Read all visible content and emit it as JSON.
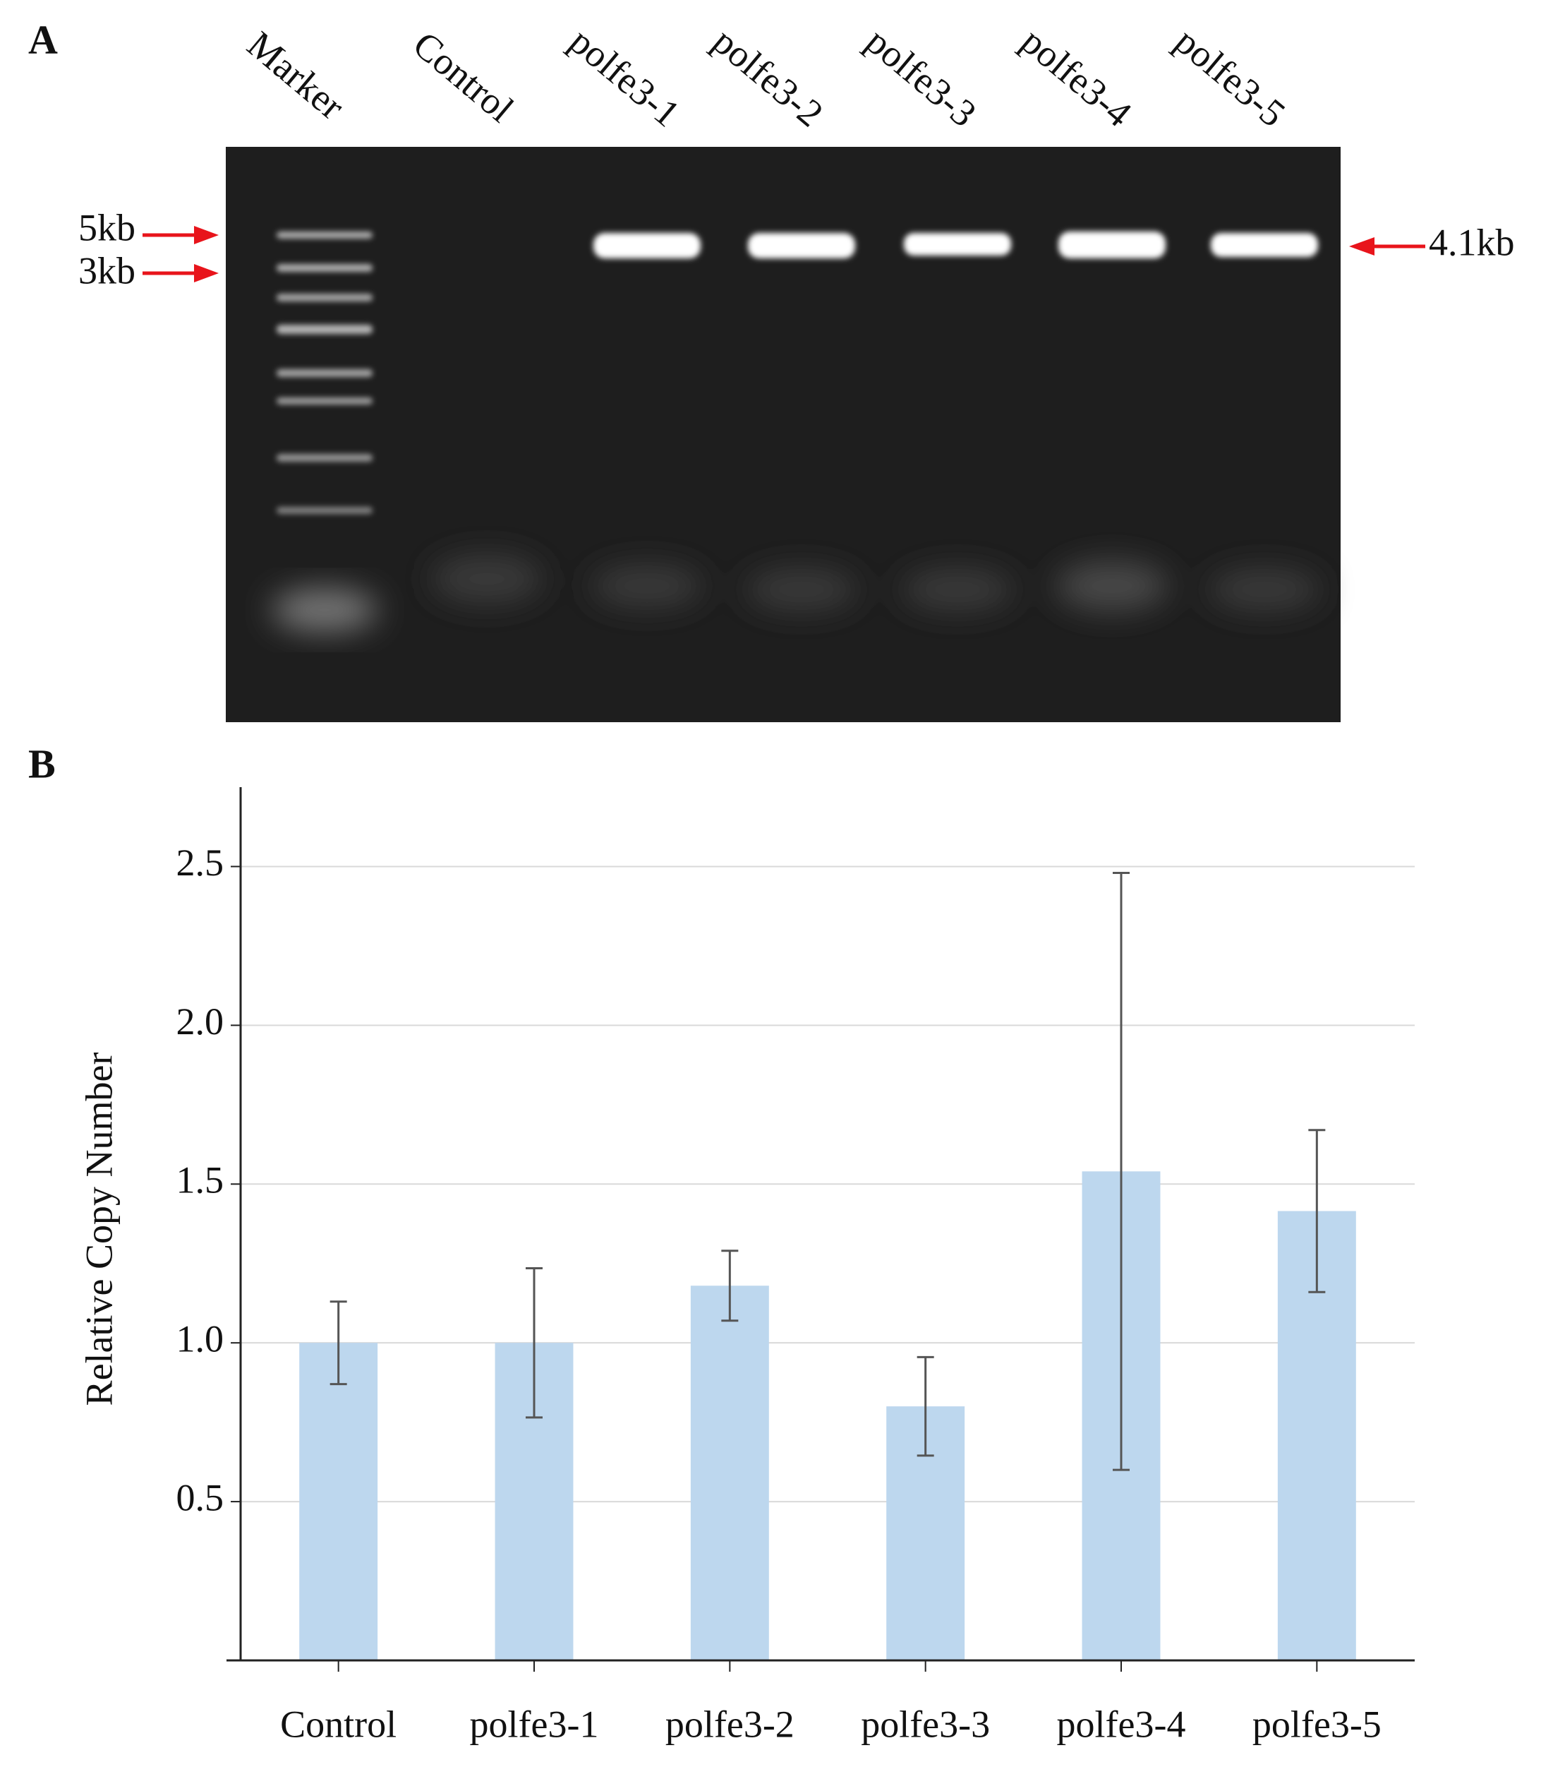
{
  "panel_labels": [
    "A",
    "B"
  ],
  "gel": {
    "lanes": [
      "Marker",
      "Control",
      "polfe3-1",
      "polfe3-2",
      "polfe3-3",
      "polfe3-4",
      "polfe3-5"
    ],
    "marker_sizes": [
      "5kb",
      "3kb"
    ],
    "band_size": "4.1kb"
  },
  "chart_data": {
    "type": "bar",
    "y_label": "Relative Copy Number",
    "categories": [
      "Control",
      "polfe3-1",
      "polfe3-2",
      "polfe3-3",
      "polfe3-4",
      "polfe3-5"
    ],
    "values": [
      1.0,
      1.0,
      1.18,
      0.8,
      1.54,
      1.415
    ],
    "errors": [
      0.13,
      0.235,
      0.11,
      0.155,
      0.94,
      0.255
    ],
    "color": "#bdd7ee",
    "error_color": "#555555",
    "ylim": [
      0,
      2.75
    ],
    "yticks": [
      0.5,
      {
        "value": 1,
        "label": "1.0"
      },
      1.5,
      {
        "value": 2,
        "label": "2.0"
      },
      2.5
    ],
    "grid": true
  }
}
